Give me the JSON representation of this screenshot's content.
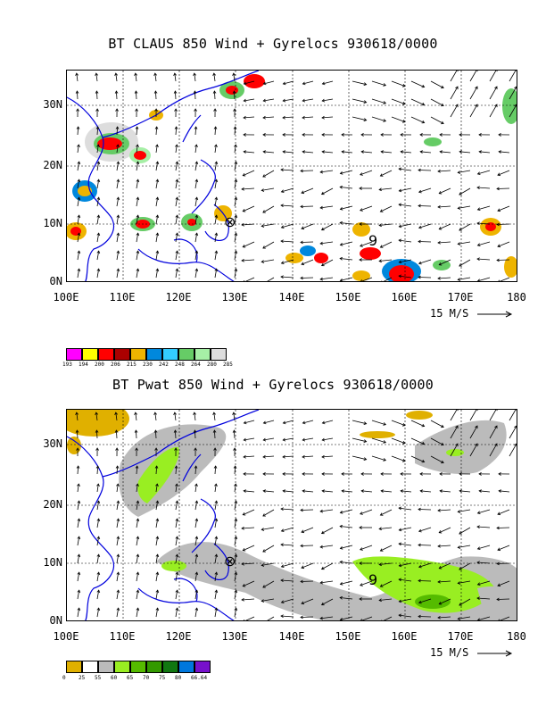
{
  "panels": [
    {
      "title": "BT CLAUS 850 Wind + Gyrelocs 930618/0000",
      "y_labels": [
        "30N",
        "20N",
        "10N",
        "0N"
      ],
      "x_labels": [
        "100E",
        "110E",
        "120E",
        "130E",
        "140E",
        "150E",
        "160E",
        "170E",
        "180"
      ],
      "scale_label": "15 M/S",
      "legend_colors": [
        "#ff00ff",
        "#ffff00",
        "#ff0000",
        "#aa0000",
        "#eeb400",
        "#0088dd",
        "#33ccff",
        "#66cc66",
        "#a6efa6",
        "#dddddd"
      ],
      "legend_values": [
        "193",
        "194",
        "200",
        "206",
        "215",
        "230",
        "242",
        "248",
        "264",
        "280",
        "285"
      ],
      "markers": {
        "circle_cross": "⊗",
        "storm_glyph": "9"
      }
    },
    {
      "title": "BT Pwat 850 Wind + Gyrelocs 930618/0000",
      "y_labels": [
        "30N",
        "20N",
        "10N",
        "0N"
      ],
      "x_labels": [
        "100E",
        "110E",
        "120E",
        "130E",
        "140E",
        "150E",
        "160E",
        "170E",
        "180"
      ],
      "scale_label": "15 M/S",
      "legend_colors": [
        "#e0b000",
        "#ffffff",
        "#bbbbbb",
        "#99ee22",
        "#55bb00",
        "#339900",
        "#117711",
        "#0077dd",
        "#7711cc"
      ],
      "legend_values": [
        "0",
        "25",
        "55",
        "60",
        "65",
        "70",
        "75",
        "80",
        "66.64"
      ],
      "markers": {
        "circle_cross": "⊗",
        "storm_glyph": "9"
      }
    }
  ]
}
